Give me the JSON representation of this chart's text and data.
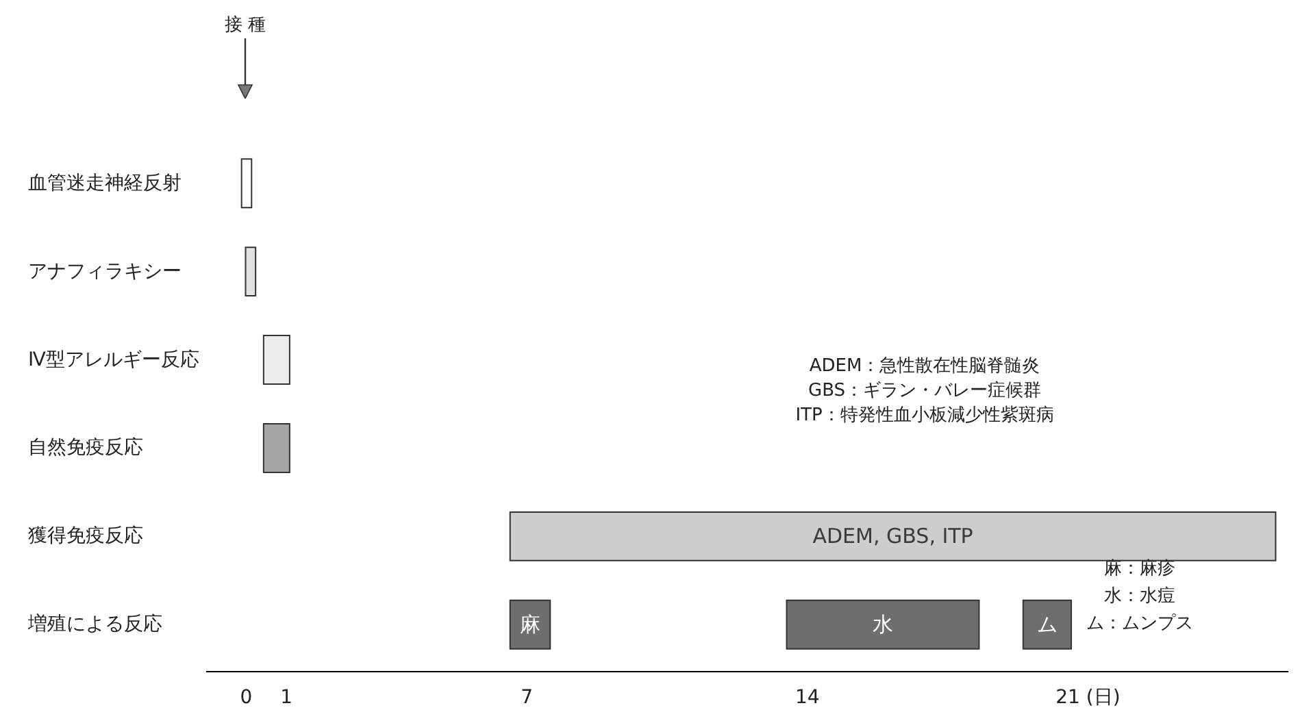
{
  "chart_data": {
    "type": "bar",
    "orientation": "horizontal",
    "categories": [
      "血管迷走神経反射",
      "アナフィラキシー",
      "Ⅳ型アレルギー反応",
      "自然免疫反応",
      "獲得免疫反応",
      "増殖による反応"
    ],
    "series": [
      {
        "values": [
          0.25,
          0.25,
          0.65,
          0.65,
          19.1,
          1.0
        ],
        "base": [
          -0.1,
          0,
          0.45,
          0.45,
          6.6,
          6.6
        ],
        "colors": [
          "#ffffff",
          "#e2e2e2",
          "#ededed",
          "#a6a6a6",
          "#cdcdcd",
          "#6e6e6e"
        ],
        "value_labels": [
          null,
          null,
          null,
          null,
          "ADEM, GBS, ITP",
          "麻"
        ]
      },
      {
        "values": [
          null,
          null,
          null,
          null,
          null,
          4.8
        ],
        "base": [
          null,
          null,
          null,
          null,
          null,
          13.5
        ],
        "color": "#6e6e6e",
        "value_labels": [
          null,
          null,
          null,
          null,
          null,
          "水"
        ]
      },
      {
        "values": [
          null,
          null,
          null,
          null,
          null,
          1.2
        ],
        "base": [
          null,
          null,
          null,
          null,
          null,
          19.4
        ],
        "color": "#6e6e6e",
        "value_labels": [
          null,
          null,
          null,
          null,
          null,
          "ム"
        ]
      }
    ],
    "xlim": [
      -1,
      26
    ],
    "xticks": [
      0,
      1,
      7,
      14,
      {
        "value": 21,
        "label": "21 (日)"
      }
    ],
    "grid": false,
    "annotations": [
      "接 種",
      "ADEM：急性散在性脳脊髄炎",
      "GBS：ギラン・バレー症候群",
      "ITP：特発性血小板減少性紫斑病",
      "麻：麻疹",
      "水：水痘",
      "ム：ムンプス"
    ]
  }
}
